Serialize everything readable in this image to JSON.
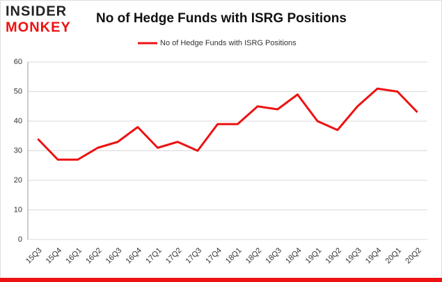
{
  "logo": {
    "line1": "INSIDER",
    "line2": "MONKEY"
  },
  "chart_data": {
    "type": "line",
    "title": "No of Hedge Funds with ISRG Positions",
    "categories": [
      "15Q3",
      "15Q4",
      "16Q1",
      "16Q2",
      "16Q3",
      "16Q4",
      "17Q1",
      "17Q2",
      "17Q3",
      "17Q4",
      "18Q1",
      "18Q2",
      "18Q3",
      "18Q4",
      "19Q1",
      "19Q2",
      "19Q3",
      "19Q4",
      "20Q1",
      "20Q2"
    ],
    "series": [
      {
        "name": "No of Hedge Funds with ISRG Positions",
        "color": "#ee1111",
        "values": [
          34,
          27,
          27,
          31,
          33,
          38,
          31,
          33,
          30,
          39,
          39,
          45,
          44,
          49,
          40,
          37,
          45,
          51,
          50,
          43
        ]
      }
    ],
    "ylim": [
      0,
      60
    ],
    "yticks": [
      0,
      10,
      20,
      30,
      40,
      50,
      60
    ],
    "grid": true,
    "legend": "top"
  }
}
